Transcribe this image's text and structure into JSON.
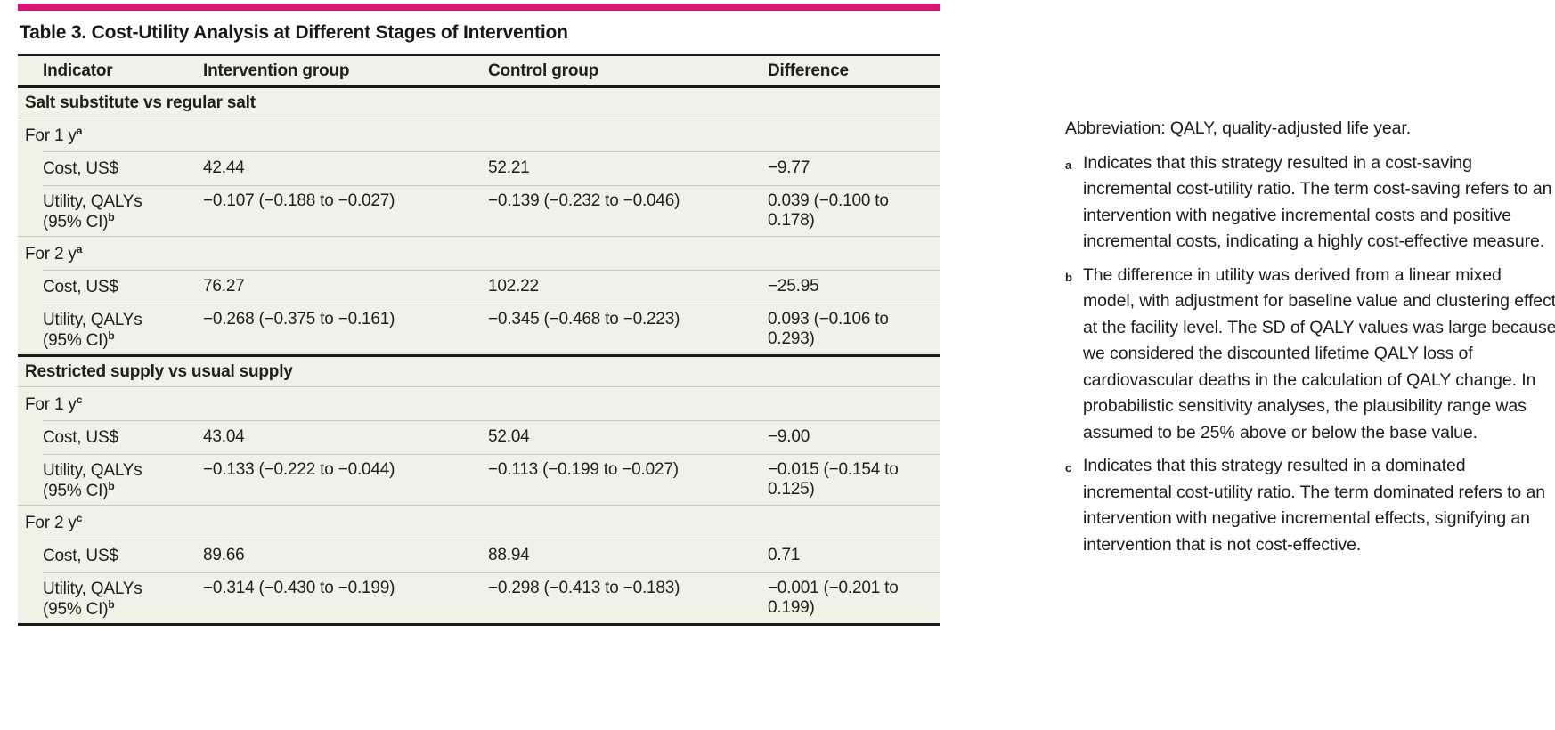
{
  "accent_color": "#d81675",
  "colors": {
    "row_background": "#f2f1e8",
    "hairline": "#c9c9bd",
    "heavy_rule": "#1a1a18"
  },
  "table": {
    "title": "Table 3. Cost-Utility Analysis at Different Stages of Intervention",
    "columns": [
      "Indicator",
      "Intervention group",
      "Control group",
      "Difference"
    ],
    "sections": [
      {
        "label": "Salt substitute vs regular salt",
        "subsections": [
          {
            "label": "For 1 y",
            "marker": "a",
            "rows": [
              {
                "indicator": "Cost, US$",
                "intervention": "42.44",
                "control": "52.21",
                "difference": "−9.77"
              },
              {
                "indicator": "Utility, QALYs",
                "indicator2": "(95% CI)",
                "marker": "b",
                "intervention": "−0.107 (−0.188 to −0.027)",
                "control": "−0.139 (−0.232 to −0.046)",
                "difference": "0.039 (−0.100 to 0.178)"
              }
            ]
          },
          {
            "label": "For 2 y",
            "marker": "a",
            "rows": [
              {
                "indicator": "Cost, US$",
                "intervention": "76.27",
                "control": "102.22",
                "difference": "−25.95"
              },
              {
                "indicator": "Utility, QALYs",
                "indicator2": "(95% CI)",
                "marker": "b",
                "intervention": "−0.268 (−0.375 to −0.161)",
                "control": "−0.345 (−0.468 to −0.223)",
                "difference": "0.093 (−0.106 to 0.293)"
              }
            ]
          }
        ]
      },
      {
        "label": "Restricted supply vs usual supply",
        "subsections": [
          {
            "label": "For 1 y",
            "marker": "c",
            "rows": [
              {
                "indicator": "Cost, US$",
                "intervention": "43.04",
                "control": "52.04",
                "difference": "−9.00"
              },
              {
                "indicator": "Utility, QALYs",
                "indicator2": "(95% CI)",
                "marker": "b",
                "intervention": "−0.133 (−0.222 to −0.044)",
                "control": "−0.113 (−0.199 to −0.027)",
                "difference": "−0.015 (−0.154 to 0.125)"
              }
            ]
          },
          {
            "label": "For 2 y",
            "marker": "c",
            "rows": [
              {
                "indicator": "Cost, US$",
                "intervention": "89.66",
                "control": "88.94",
                "difference": "0.71"
              },
              {
                "indicator": "Utility, QALYs",
                "indicator2": "(95% CI)",
                "marker": "b",
                "intervention": "−0.314 (−0.430 to −0.199)",
                "control": "−0.298 (−0.413 to −0.183)",
                "difference": "−0.001 (−0.201 to 0.199)"
              }
            ]
          }
        ]
      }
    ]
  },
  "footnotes": {
    "abbreviation": "Abbreviation: QALY, quality-adjusted life year.",
    "items": [
      {
        "marker": "a",
        "text": "Indicates that this strategy resulted in a cost-saving incremental cost-utility ratio. The term cost-saving refers to an intervention with negative incremental costs and positive incremental costs, indicating a highly cost-effective measure."
      },
      {
        "marker": "b",
        "text": "The difference in utility was derived from a linear mixed model, with adjustment for baseline value and clustering effect at the facility level. The SD of QALY values was large because we considered the discounted lifetime QALY loss of cardiovascular deaths in the calculation of QALY change. In probabilistic sensitivity analyses, the plausibility range was assumed to be 25% above or below the base value."
      },
      {
        "marker": "c",
        "text": "Indicates that this strategy resulted in a dominated incremental cost-utility ratio. The term dominated refers to an intervention with negative incremental effects, signifying an intervention that is not cost-effective."
      }
    ]
  }
}
